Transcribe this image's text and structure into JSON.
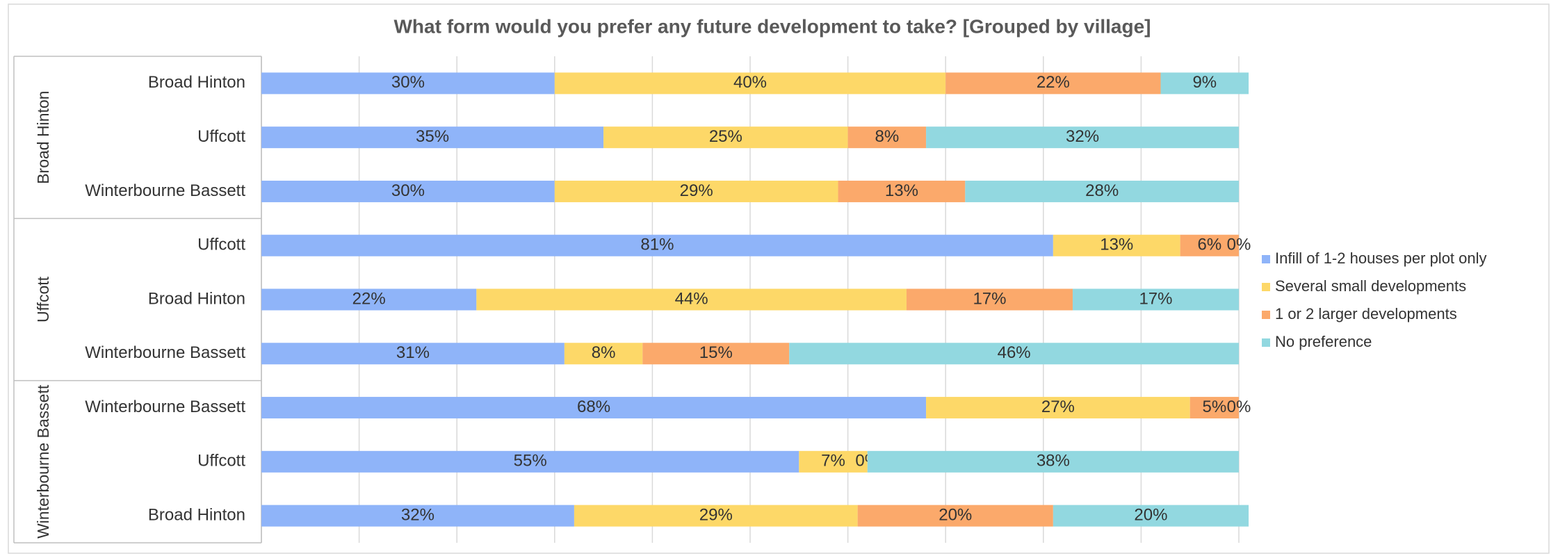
{
  "chart_data": {
    "type": "stacked-barh",
    "title": "What form would you prefer any future development to take? [Grouped by village]",
    "groups": [
      {
        "name": "Broad Hinton",
        "categories": [
          "Broad Hinton",
          "Uffcott",
          "Winterbourne Bassett"
        ]
      },
      {
        "name": "Uffcott",
        "categories": [
          "Uffcott",
          "Broad Hinton",
          "Winterbourne Bassett"
        ]
      },
      {
        "name": "Winterbourne Bassett",
        "categories": [
          "Winterbourne Bassett",
          "Uffcott",
          "Broad Hinton"
        ]
      }
    ],
    "series": [
      {
        "name": "Infill of 1-2 houses per plot only",
        "color": "#8fb4f9",
        "values": [
          30,
          35,
          30,
          81,
          22,
          31,
          68,
          55,
          32
        ],
        "value_labels": [
          "30%",
          "35%",
          "30%",
          "81%",
          "22%",
          "31%",
          "68%",
          "55%",
          "32%"
        ]
      },
      {
        "name": "Several small developments",
        "color": "#fdd868",
        "values": [
          40,
          25,
          29,
          13,
          44,
          8,
          27,
          7,
          29
        ],
        "value_labels": [
          "40%",
          "25%",
          "29%",
          "13%",
          "44%",
          "8%",
          "27%",
          "7%",
          "29%"
        ]
      },
      {
        "name": "1 or 2 larger developments",
        "color": "#fba96b",
        "values": [
          22,
          8,
          13,
          6,
          17,
          15,
          5,
          0,
          20
        ],
        "value_labels": [
          "22%",
          "8%",
          "13%",
          "6%",
          "17%",
          "15%",
          "5%",
          "0%",
          "20%"
        ]
      },
      {
        "name": "No preference",
        "color": "#92d8e0",
        "values": [
          9,
          32,
          28,
          0,
          17,
          46,
          0,
          38,
          20
        ],
        "value_labels": [
          "9%",
          "32%",
          "28%",
          "0%",
          "17%",
          "46%",
          "0%",
          "38%",
          "20%"
        ]
      }
    ],
    "xlim": [
      0,
      100
    ],
    "xticks": [
      0,
      10,
      20,
      30,
      40,
      50,
      60,
      70,
      80,
      90,
      100
    ],
    "grid": true,
    "legend": "right"
  }
}
